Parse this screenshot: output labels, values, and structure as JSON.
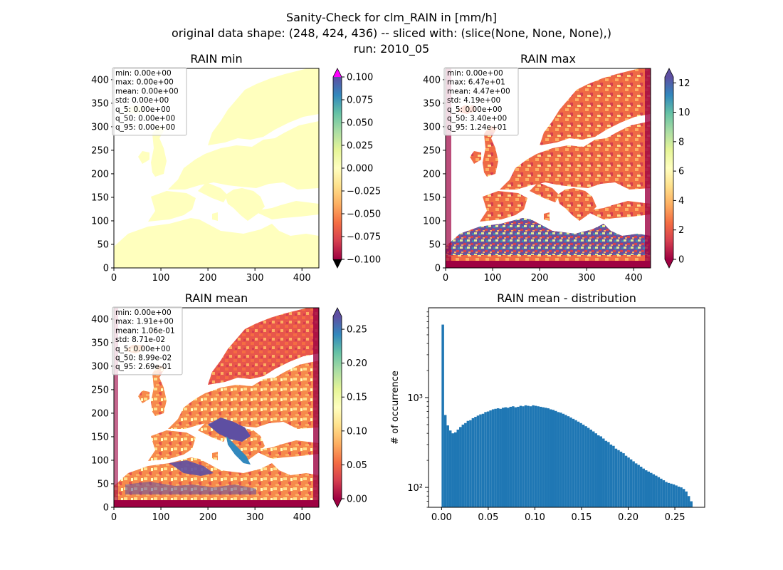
{
  "figure": {
    "title_lines": [
      "Sanity-Check for clm_RAIN in [mm/h]",
      "original data shape: (248, 424, 436) -- sliced with: (slice(None, None, None),)",
      "run: 2010_05"
    ]
  },
  "chart_data": [
    {
      "type": "heatmap",
      "title": "RAIN min",
      "xlabel": "",
      "ylabel": "",
      "xlim": [
        0,
        436
      ],
      "ylim": [
        0,
        424
      ],
      "x_ticks": [
        0,
        100,
        200,
        300,
        400
      ],
      "y_ticks": [
        0,
        50,
        100,
        150,
        200,
        250,
        300,
        350,
        400
      ],
      "colormap": "Spectral",
      "colorbar": {
        "range": [
          -0.1,
          0.1
        ],
        "ticks": [
          "0.100",
          "0.075",
          "0.050",
          "0.025",
          "0.000",
          "−0.025",
          "−0.050",
          "−0.075",
          "−0.100"
        ],
        "extend_top_color": "#ff00ff",
        "extend_bottom_color": "#000000"
      },
      "field_color": "#ffffbe",
      "stats": [
        "min: 0.00e+00",
        "max: 0.00e+00",
        "mean: 0.00e+00",
        "std: 0.00e+00",
        "q_5: 0.00e+00",
        "q_50: 0.00e+00",
        "q_95: 0.00e+00"
      ]
    },
    {
      "type": "heatmap",
      "title": "RAIN max",
      "xlabel": "",
      "ylabel": "",
      "xlim": [
        0,
        436
      ],
      "ylim": [
        0,
        424
      ],
      "x_ticks": [
        0,
        100,
        200,
        300,
        400
      ],
      "y_ticks": [
        0,
        50,
        100,
        150,
        200,
        250,
        300,
        350,
        400
      ],
      "colormap": "Spectral",
      "colorbar": {
        "range": [
          0,
          12.4
        ],
        "ticks": [
          "12",
          "10",
          "8",
          "6",
          "4",
          "2",
          "0"
        ],
        "extend_top_color": "#5e4fa2",
        "extend_bottom_color": "#9e0142"
      },
      "stats": [
        "min: 0.00e+00",
        "max: 6.47e+01",
        "mean: 4.47e+00",
        "std: 4.19e+00",
        "q_5: 0.00e+00",
        "q_50: 3.40e+00",
        "q_95: 1.24e+01"
      ]
    },
    {
      "type": "heatmap",
      "title": "RAIN mean",
      "xlabel": "",
      "ylabel": "",
      "xlim": [
        0,
        436
      ],
      "ylim": [
        0,
        424
      ],
      "x_ticks": [
        0,
        100,
        200,
        300,
        400
      ],
      "y_ticks": [
        0,
        50,
        100,
        150,
        200,
        250,
        300,
        350,
        400
      ],
      "colormap": "Spectral",
      "colorbar": {
        "range": [
          0,
          0.269
        ],
        "ticks": [
          "0.25",
          "0.20",
          "0.15",
          "0.10",
          "0.05",
          "0.00"
        ],
        "extend_top_color": "#5e4fa2",
        "extend_bottom_color": "#9e0142"
      },
      "stats": [
        "min: 0.00e+00",
        "max: 1.91e+00",
        "mean: 1.06e-01",
        "std: 8.71e-02",
        "q_5: 0.00e+00",
        "q_50: 8.99e-02",
        "q_95: 2.69e-01"
      ]
    },
    {
      "type": "bar",
      "subtype": "histogram",
      "title": "RAIN mean - distribution",
      "xlabel": "",
      "ylabel": "# of occurrence",
      "xlim": [
        -0.014,
        0.282
      ],
      "y_scale": "log",
      "ylim": [
        60,
        10000
      ],
      "x_ticks": [
        "0.00",
        "0.05",
        "0.10",
        "0.15",
        "0.20",
        "0.25"
      ],
      "y_ticks": [
        "10²",
        "10³"
      ],
      "bar_color": "#1f77b4",
      "bin_range": [
        0,
        0.269
      ],
      "bins": 100,
      "counts": [
        6500,
        640,
        490,
        430,
        400,
        410,
        440,
        470,
        500,
        520,
        550,
        560,
        590,
        610,
        630,
        650,
        660,
        690,
        700,
        720,
        740,
        750,
        760,
        750,
        770,
        780,
        770,
        790,
        800,
        780,
        790,
        810,
        800,
        820,
        810,
        800,
        820,
        810,
        800,
        790,
        780,
        770,
        760,
        740,
        730,
        710,
        690,
        680,
        660,
        640,
        620,
        600,
        580,
        560,
        540,
        520,
        500,
        480,
        460,
        440,
        420,
        400,
        380,
        370,
        350,
        330,
        320,
        300,
        290,
        270,
        260,
        250,
        240,
        225,
        215,
        205,
        195,
        185,
        178,
        170,
        162,
        155,
        150,
        145,
        140,
        135,
        130,
        125,
        120,
        115,
        112,
        110,
        108,
        105,
        102,
        100,
        96,
        90,
        80,
        70
      ]
    }
  ]
}
